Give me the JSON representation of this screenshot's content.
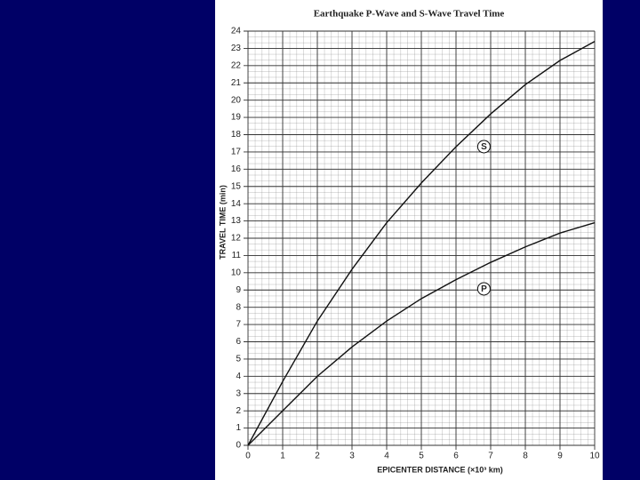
{
  "chart_data": {
    "type": "line",
    "title": "Earthquake P-Wave and S-Wave Travel Time",
    "x_label": "EPICENTER DISTANCE (×10³ km)",
    "y_label": "TRAVEL TIME (min)",
    "x": [
      0,
      1,
      2,
      3,
      4,
      5,
      6,
      7,
      8,
      9,
      10
    ],
    "series": [
      {
        "name": "S",
        "color": "#111111",
        "values": [
          0,
          3.7,
          7.2,
          10.2,
          12.9,
          15.2,
          17.3,
          19.2,
          20.9,
          22.3,
          23.4
        ]
      },
      {
        "name": "P",
        "color": "#111111",
        "values": [
          0,
          2.0,
          4.0,
          5.7,
          7.2,
          8.5,
          9.6,
          10.6,
          11.5,
          12.3,
          12.9
        ]
      }
    ],
    "xlim": [
      0,
      10
    ],
    "xticks": [
      0,
      1,
      2,
      3,
      4,
      5,
      6,
      7,
      8,
      9,
      10
    ],
    "ylim": [
      0,
      24
    ],
    "yticks": [
      0,
      1,
      2,
      3,
      4,
      5,
      6,
      7,
      8,
      9,
      10,
      11,
      12,
      13,
      14,
      15,
      16,
      17,
      18,
      19,
      20,
      21,
      22,
      23,
      24
    ],
    "grid": true
  }
}
